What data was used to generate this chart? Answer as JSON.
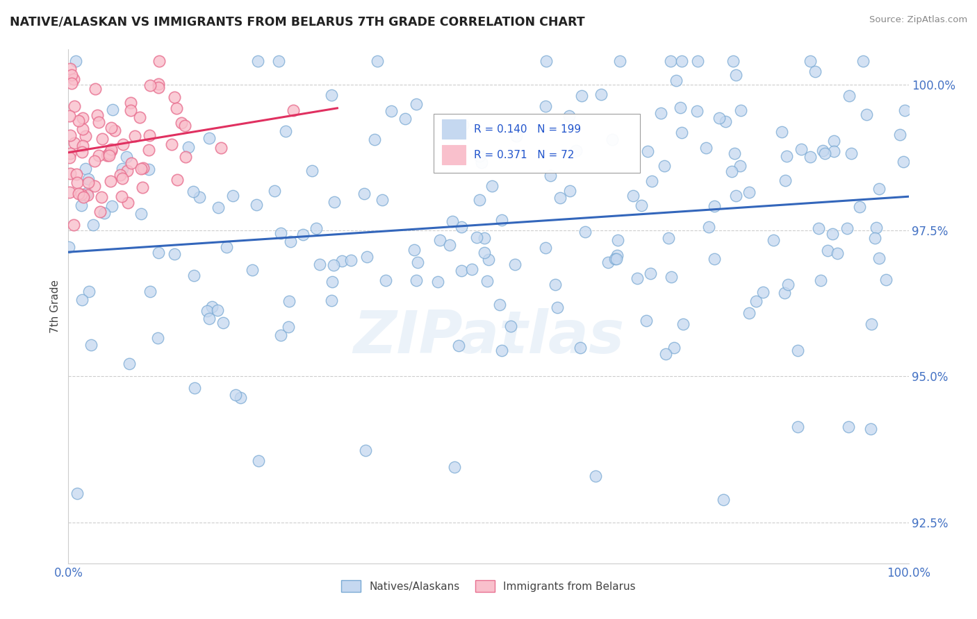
{
  "title": "NATIVE/ALASKAN VS IMMIGRANTS FROM BELARUS 7TH GRADE CORRELATION CHART",
  "source_text": "Source: ZipAtlas.com",
  "ylabel": "7th Grade",
  "watermark": "ZIPatlas",
  "xmin": 0.0,
  "xmax": 100.0,
  "ymin": 91.8,
  "ymax": 100.6,
  "yticks": [
    92.5,
    95.0,
    97.5,
    100.0
  ],
  "ytick_labels": [
    "92.5%",
    "95.0%",
    "97.5%",
    "100.0%"
  ],
  "blue_R": "0.140",
  "blue_N": "199",
  "pink_R": "0.371",
  "pink_N": "72",
  "axis_color": "#4472c4",
  "grid_color": "#c8c8c8",
  "blue_scatter_color": "#c5d8f0",
  "blue_scatter_edge": "#7aaad4",
  "pink_scatter_color": "#f9c0cc",
  "pink_scatter_edge": "#e87090",
  "blue_line_color": "#3366bb",
  "pink_line_color": "#e03060",
  "legend_box_color": "#f0f0f0",
  "stat_text_color": "#2255cc"
}
